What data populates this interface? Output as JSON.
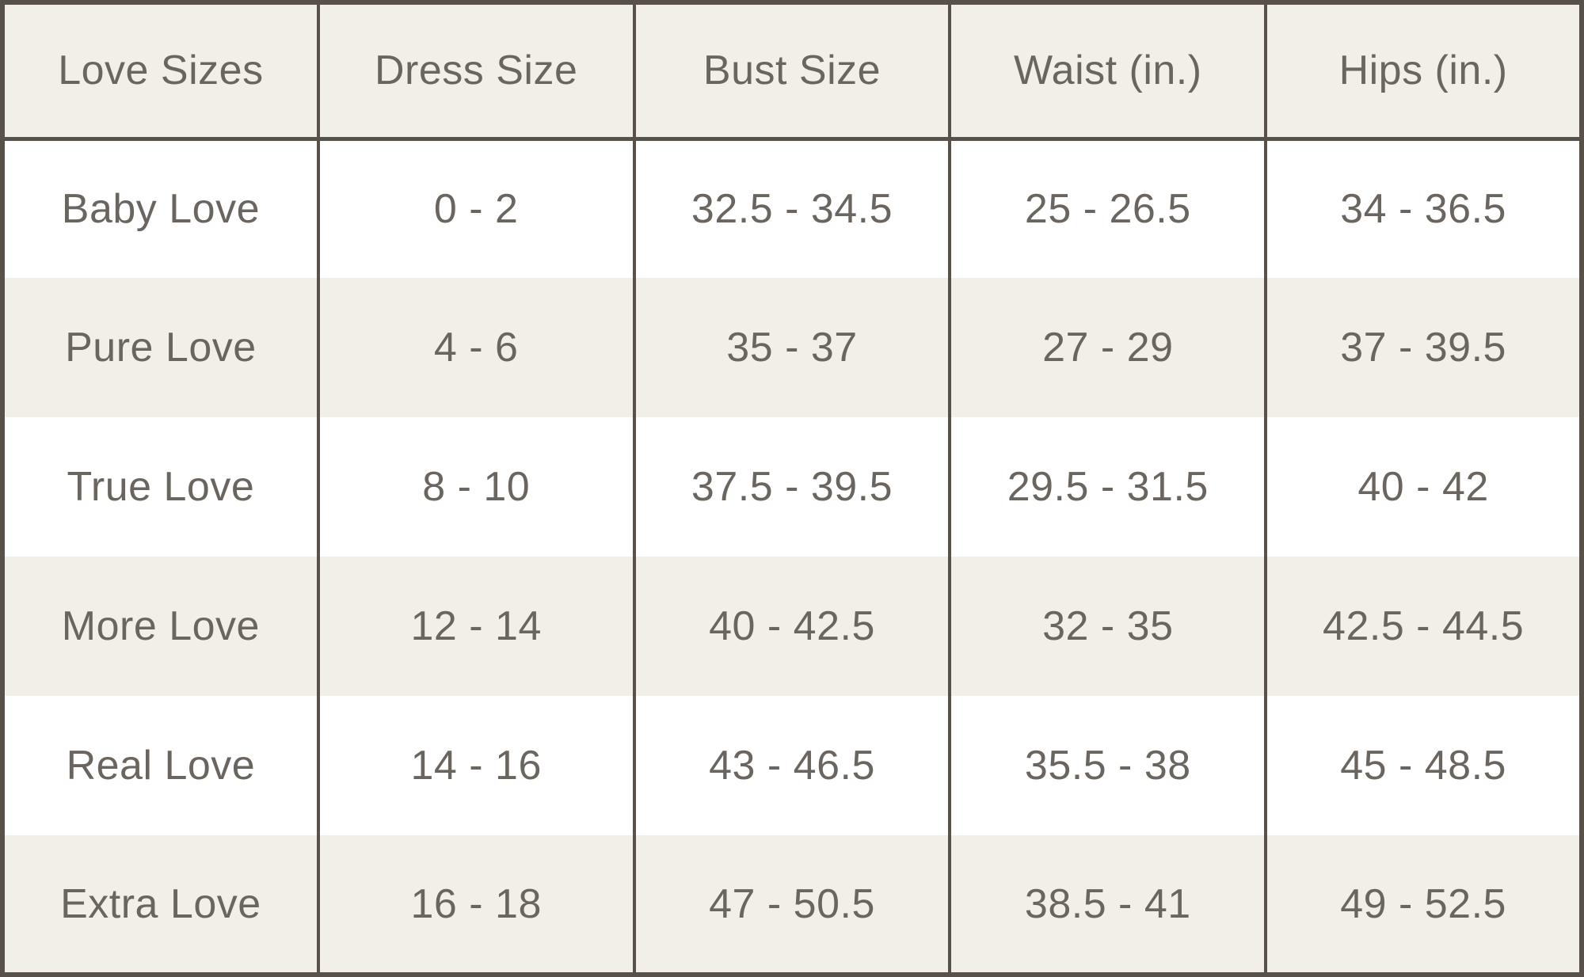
{
  "colors": {
    "border": "#57514a",
    "text": "#6b655f",
    "band_beige": "#f2efe7",
    "band_white": "#ffffff"
  },
  "chart_data": {
    "type": "table",
    "columns": [
      "Love Sizes",
      "Dress Size",
      "Bust Size",
      "Waist (in.)",
      "Hips (in.)"
    ],
    "rows": [
      [
        "Baby Love",
        "0 - 2",
        "32.5 - 34.5",
        "25 - 26.5",
        "34 - 36.5"
      ],
      [
        "Pure Love",
        "4 - 6",
        "35 - 37",
        "27 - 29",
        "37 - 39.5"
      ],
      [
        "True Love",
        "8 - 10",
        "37.5 - 39.5",
        "29.5 - 31.5",
        "40 - 42"
      ],
      [
        "More Love",
        "12 - 14",
        "40 - 42.5",
        "32 - 35",
        "42.5 - 44.5"
      ],
      [
        "Real Love",
        "14 - 16",
        "43 - 46.5",
        "35.5 - 38",
        "45 - 48.5"
      ],
      [
        "Extra Love",
        "16 - 18",
        "47 - 50.5",
        "38.5 - 41",
        "49 - 52.5"
      ]
    ]
  }
}
